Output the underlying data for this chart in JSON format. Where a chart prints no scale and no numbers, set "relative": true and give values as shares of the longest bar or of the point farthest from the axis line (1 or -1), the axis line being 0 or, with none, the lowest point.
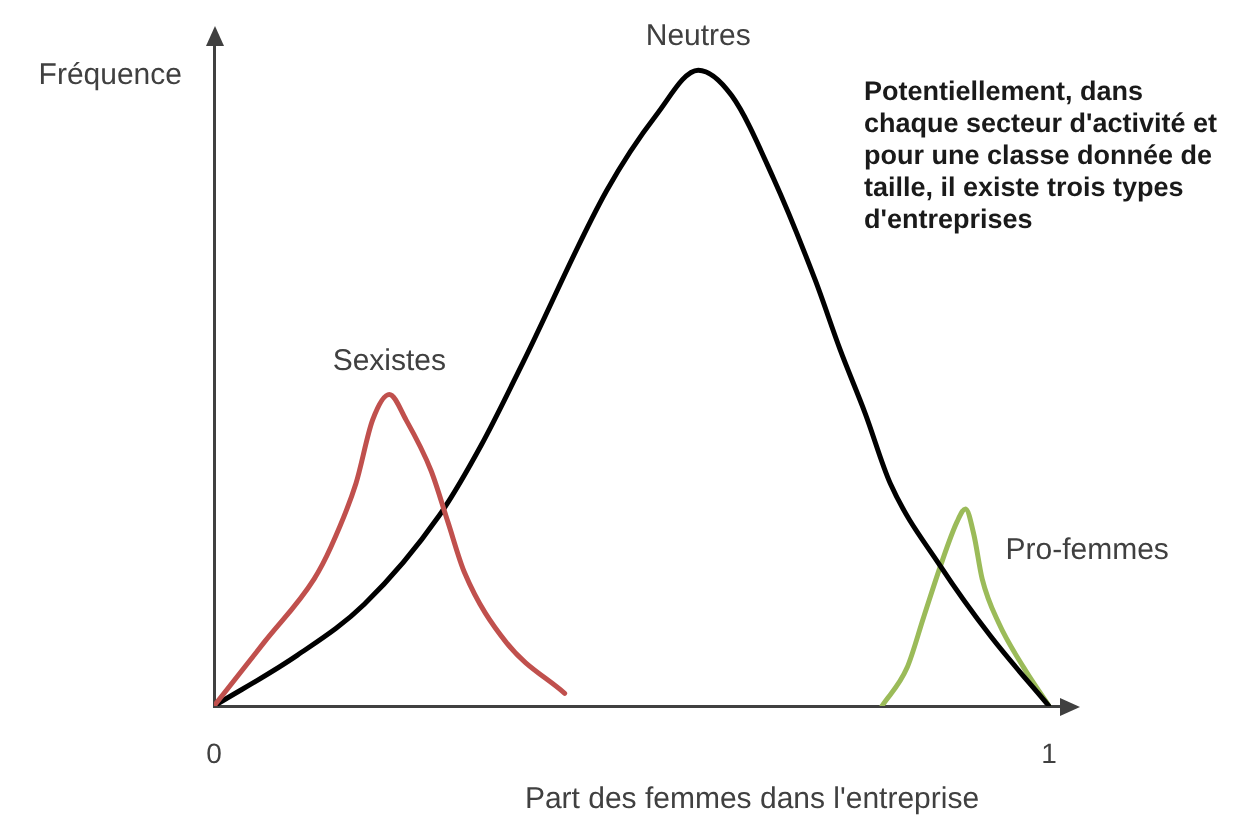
{
  "chart_data": {
    "type": "line",
    "xlabel": "Part des femmes dans l'entreprise",
    "ylabel": "Fréquence",
    "annotations": [
      "Potentiellement, dans\nchaque secteur d'activité et\npour une classe donnée de\ntaille, il existe trois types\nd'entreprises"
    ],
    "relative": true,
    "xlim": [
      0,
      1.03
    ],
    "xticks": [
      0,
      1
    ],
    "tick_labels": "x",
    "marker": "none",
    "series": [
      {
        "name": "Sexistes",
        "color": "#c0504d",
        "x": [
          0,
          0.06,
          0.12,
          0.14,
          0.17,
          0.19,
          0.21,
          0.23,
          0.26,
          0.28,
          0.3,
          0.35,
          0.42
        ],
        "values": [
          0,
          0.1,
          0.2,
          0.25,
          0.35,
          0.45,
          0.49,
          0.45,
          0.37,
          0.29,
          0.21,
          0.1,
          0.02
        ]
      },
      {
        "name": "Neutres",
        "color": "#000000",
        "x": [
          0,
          0.1,
          0.18,
          0.27,
          0.32,
          0.37,
          0.47,
          0.53,
          0.58,
          0.62,
          0.67,
          0.72,
          0.75,
          0.78,
          0.81,
          0.87,
          0.93,
          1
        ],
        "values": [
          0,
          0.08,
          0.16,
          0.3,
          0.41,
          0.54,
          0.81,
          0.93,
          1,
          0.96,
          0.83,
          0.67,
          0.56,
          0.46,
          0.35,
          0.22,
          0.11,
          0
        ]
      },
      {
        "name": "Pro-femmes",
        "color": "#9bbb59",
        "x": [
          0.8,
          0.83,
          0.85,
          0.87,
          0.89,
          0.9,
          0.91,
          0.92,
          0.94,
          0.97,
          1
        ],
        "values": [
          0,
          0.06,
          0.14,
          0.22,
          0.29,
          0.31,
          0.27,
          0.2,
          0.13,
          0.06,
          0
        ]
      }
    ]
  }
}
